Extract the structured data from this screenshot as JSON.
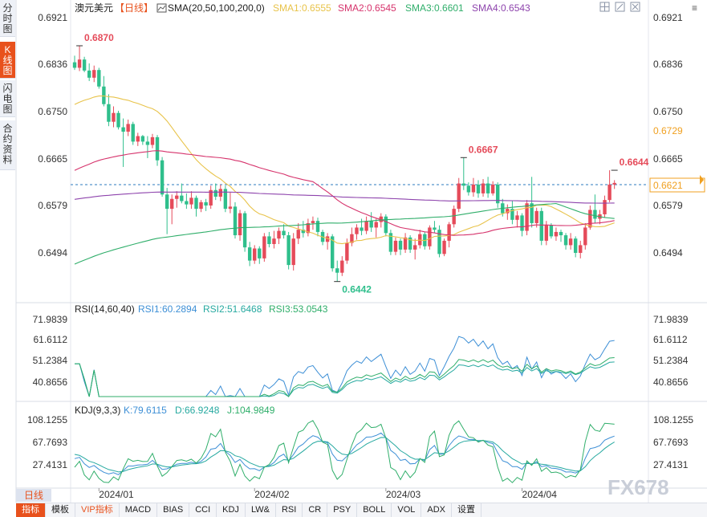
{
  "side_tabs": [
    {
      "label": "分时图",
      "active": false
    },
    {
      "label": "K线图",
      "active": true
    },
    {
      "label": "闪电图",
      "active": false
    },
    {
      "label": "合约资料",
      "active": false
    }
  ],
  "header": {
    "symbol": "澳元美元",
    "period": "【日线】",
    "indicator": "SMA(20,50,100,200,0)",
    "sma1": "SMA1:0.6555",
    "sma2": "SMA2:0.6545",
    "sma3": "SMA3:0.6601",
    "sma4": "SMA4:0.6543"
  },
  "rsi_header": {
    "name": "RSI(14,60,40)",
    "rsi1": "RSI1:60.2894",
    "rsi2": "RSI2:51.6468",
    "rsi3": "RSI3:53.0543"
  },
  "kdj_header": {
    "name": "KDJ(9,3,3)",
    "k": "K:79.6115",
    "d": "D:66.9248",
    "j": "J:104.9849"
  },
  "period_button": "日线",
  "bottom_tabs": [
    "指标",
    "模板",
    "VIP指标",
    "MACD",
    "BIAS",
    "CCI",
    "KDJ",
    "LW&",
    "RSI",
    "CR",
    "PSY",
    "BOLL",
    "VOL",
    "ADX",
    "设置"
  ],
  "watermark": "FX678",
  "colors": {
    "up": "#e54b5a",
    "down": "#2fbf8c",
    "sma1": "#e8c34a",
    "sma2": "#d6336c",
    "sma3": "#2fae6a",
    "sma4": "#8e44ad",
    "rsi1": "#3d8fd6",
    "rsi2": "#26a9a0",
    "rsi3": "#2fae6a",
    "accent": "#e8511c",
    "current": "#f0a020"
  },
  "chart_data": {
    "type": "candlestick",
    "price_axis_ticks": [
      "0.6921",
      "0.6836",
      "0.6750",
      "0.6665",
      "0.6579",
      "0.6494"
    ],
    "price_labels": {
      "current": "0.6621",
      "sma_marker": "0.6729"
    },
    "annotations": [
      {
        "text": "0.6870",
        "value": 0.687,
        "index": 1
      },
      {
        "text": "0.6442",
        "value": 0.6442,
        "index": 54
      },
      {
        "text": "0.6667",
        "value": 0.6667,
        "index": 80
      },
      {
        "text": "0.6644",
        "value": 0.6644,
        "index": 111
      }
    ],
    "x_labels": [
      {
        "text": "2024/01",
        "index": 5
      },
      {
        "text": "2024/02",
        "index": 37
      },
      {
        "text": "2024/03",
        "index": 64
      },
      {
        "text": "2024/04",
        "index": 92
      }
    ],
    "candles": [
      {
        "o": 0.684,
        "h": 0.6852,
        "l": 0.6826,
        "c": 0.683
      },
      {
        "o": 0.683,
        "h": 0.687,
        "l": 0.6824,
        "c": 0.6845
      },
      {
        "o": 0.6845,
        "h": 0.685,
        "l": 0.6822,
        "c": 0.6825
      },
      {
        "o": 0.6825,
        "h": 0.6838,
        "l": 0.6806,
        "c": 0.6812
      },
      {
        "o": 0.6812,
        "h": 0.6834,
        "l": 0.6804,
        "c": 0.6826
      },
      {
        "o": 0.6826,
        "h": 0.683,
        "l": 0.6792,
        "c": 0.6796
      },
      {
        "o": 0.6796,
        "h": 0.6815,
        "l": 0.676,
        "c": 0.6764
      },
      {
        "o": 0.6764,
        "h": 0.6782,
        "l": 0.6724,
        "c": 0.6732
      },
      {
        "o": 0.6732,
        "h": 0.676,
        "l": 0.6722,
        "c": 0.6748
      },
      {
        "o": 0.6748,
        "h": 0.6752,
        "l": 0.6718,
        "c": 0.6722
      },
      {
        "o": 0.6722,
        "h": 0.6738,
        "l": 0.665,
        "c": 0.6714
      },
      {
        "o": 0.6714,
        "h": 0.6736,
        "l": 0.6706,
        "c": 0.6728
      },
      {
        "o": 0.6728,
        "h": 0.6732,
        "l": 0.669,
        "c": 0.6696
      },
      {
        "o": 0.6696,
        "h": 0.6712,
        "l": 0.6688,
        "c": 0.6706
      },
      {
        "o": 0.6706,
        "h": 0.6708,
        "l": 0.669,
        "c": 0.6696
      },
      {
        "o": 0.6696,
        "h": 0.6706,
        "l": 0.6666,
        "c": 0.669
      },
      {
        "o": 0.669,
        "h": 0.671,
        "l": 0.6684,
        "c": 0.6704
      },
      {
        "o": 0.6704,
        "h": 0.6708,
        "l": 0.6652,
        "c": 0.6662
      },
      {
        "o": 0.6662,
        "h": 0.6668,
        "l": 0.6596,
        "c": 0.66
      },
      {
        "o": 0.66,
        "h": 0.6612,
        "l": 0.6528,
        "c": 0.6574
      },
      {
        "o": 0.6574,
        "h": 0.66,
        "l": 0.6546,
        "c": 0.6592
      },
      {
        "o": 0.6592,
        "h": 0.6606,
        "l": 0.6576,
        "c": 0.6598
      },
      {
        "o": 0.6598,
        "h": 0.662,
        "l": 0.6584,
        "c": 0.6588
      },
      {
        "o": 0.6588,
        "h": 0.6602,
        "l": 0.6574,
        "c": 0.6582
      },
      {
        "o": 0.6582,
        "h": 0.6606,
        "l": 0.6574,
        "c": 0.6594
      },
      {
        "o": 0.6594,
        "h": 0.6598,
        "l": 0.656,
        "c": 0.6574
      },
      {
        "o": 0.6574,
        "h": 0.659,
        "l": 0.6568,
        "c": 0.6586
      },
      {
        "o": 0.6586,
        "h": 0.6592,
        "l": 0.657,
        "c": 0.658
      },
      {
        "o": 0.658,
        "h": 0.6616,
        "l": 0.6574,
        "c": 0.6608
      },
      {
        "o": 0.6608,
        "h": 0.662,
        "l": 0.659,
        "c": 0.6596
      },
      {
        "o": 0.6596,
        "h": 0.6618,
        "l": 0.6588,
        "c": 0.661
      },
      {
        "o": 0.661,
        "h": 0.6616,
        "l": 0.6568,
        "c": 0.6574
      },
      {
        "o": 0.6574,
        "h": 0.6604,
        "l": 0.6566,
        "c": 0.6578
      },
      {
        "o": 0.6578,
        "h": 0.6586,
        "l": 0.652,
        "c": 0.6526
      },
      {
        "o": 0.6526,
        "h": 0.6572,
        "l": 0.6516,
        "c": 0.6566
      },
      {
        "o": 0.6566,
        "h": 0.657,
        "l": 0.6496,
        "c": 0.6504
      },
      {
        "o": 0.6504,
        "h": 0.6514,
        "l": 0.647,
        "c": 0.648
      },
      {
        "o": 0.648,
        "h": 0.6508,
        "l": 0.6474,
        "c": 0.6502
      },
      {
        "o": 0.6502,
        "h": 0.6506,
        "l": 0.6474,
        "c": 0.6484
      },
      {
        "o": 0.6484,
        "h": 0.653,
        "l": 0.6478,
        "c": 0.6524
      },
      {
        "o": 0.6524,
        "h": 0.6532,
        "l": 0.6504,
        "c": 0.651
      },
      {
        "o": 0.651,
        "h": 0.6534,
        "l": 0.6502,
        "c": 0.652
      },
      {
        "o": 0.652,
        "h": 0.654,
        "l": 0.651,
        "c": 0.6534
      },
      {
        "o": 0.6534,
        "h": 0.6546,
        "l": 0.652,
        "c": 0.6526
      },
      {
        "o": 0.6526,
        "h": 0.6532,
        "l": 0.6464,
        "c": 0.6472
      },
      {
        "o": 0.6472,
        "h": 0.653,
        "l": 0.6462,
        "c": 0.652
      },
      {
        "o": 0.652,
        "h": 0.6548,
        "l": 0.651,
        "c": 0.6536
      },
      {
        "o": 0.6536,
        "h": 0.6552,
        "l": 0.6522,
        "c": 0.653
      },
      {
        "o": 0.653,
        "h": 0.6556,
        "l": 0.6524,
        "c": 0.6548
      },
      {
        "o": 0.6548,
        "h": 0.656,
        "l": 0.6536,
        "c": 0.6552
      },
      {
        "o": 0.6552,
        "h": 0.6558,
        "l": 0.6524,
        "c": 0.6532
      },
      {
        "o": 0.6532,
        "h": 0.6536,
        "l": 0.6508,
        "c": 0.6514
      },
      {
        "o": 0.6514,
        "h": 0.653,
        "l": 0.65,
        "c": 0.6524
      },
      {
        "o": 0.6524,
        "h": 0.6528,
        "l": 0.646,
        "c": 0.6466
      },
      {
        "o": 0.6466,
        "h": 0.648,
        "l": 0.6442,
        "c": 0.6458
      },
      {
        "o": 0.6458,
        "h": 0.6488,
        "l": 0.6452,
        "c": 0.648
      },
      {
        "o": 0.648,
        "h": 0.652,
        "l": 0.6474,
        "c": 0.6512
      },
      {
        "o": 0.6512,
        "h": 0.654,
        "l": 0.6506,
        "c": 0.6528
      },
      {
        "o": 0.6528,
        "h": 0.6546,
        "l": 0.6518,
        "c": 0.654
      },
      {
        "o": 0.654,
        "h": 0.6556,
        "l": 0.6526,
        "c": 0.6534
      },
      {
        "o": 0.6534,
        "h": 0.656,
        "l": 0.6528,
        "c": 0.6552
      },
      {
        "o": 0.6552,
        "h": 0.6568,
        "l": 0.6532,
        "c": 0.654
      },
      {
        "o": 0.654,
        "h": 0.6556,
        "l": 0.6522,
        "c": 0.655
      },
      {
        "o": 0.655,
        "h": 0.6566,
        "l": 0.654,
        "c": 0.656
      },
      {
        "o": 0.656,
        "h": 0.6564,
        "l": 0.6524,
        "c": 0.653
      },
      {
        "o": 0.653,
        "h": 0.6536,
        "l": 0.649,
        "c": 0.6496
      },
      {
        "o": 0.6496,
        "h": 0.6522,
        "l": 0.649,
        "c": 0.6516
      },
      {
        "o": 0.6516,
        "h": 0.652,
        "l": 0.649,
        "c": 0.65
      },
      {
        "o": 0.65,
        "h": 0.653,
        "l": 0.6494,
        "c": 0.6522
      },
      {
        "o": 0.6522,
        "h": 0.6526,
        "l": 0.6494,
        "c": 0.65
      },
      {
        "o": 0.65,
        "h": 0.652,
        "l": 0.6482,
        "c": 0.6508
      },
      {
        "o": 0.6508,
        "h": 0.6536,
        "l": 0.6502,
        "c": 0.6528
      },
      {
        "o": 0.6528,
        "h": 0.6532,
        "l": 0.65,
        "c": 0.6506
      },
      {
        "o": 0.6506,
        "h": 0.6544,
        "l": 0.65,
        "c": 0.654
      },
      {
        "o": 0.654,
        "h": 0.6552,
        "l": 0.653,
        "c": 0.6536
      },
      {
        "o": 0.6536,
        "h": 0.6544,
        "l": 0.6486,
        "c": 0.6492
      },
      {
        "o": 0.6492,
        "h": 0.652,
        "l": 0.6488,
        "c": 0.6516
      },
      {
        "o": 0.6516,
        "h": 0.655,
        "l": 0.6504,
        "c": 0.6546
      },
      {
        "o": 0.6546,
        "h": 0.658,
        "l": 0.654,
        "c": 0.6574
      },
      {
        "o": 0.6574,
        "h": 0.663,
        "l": 0.6568,
        "c": 0.662
      },
      {
        "o": 0.662,
        "h": 0.6667,
        "l": 0.6608,
        "c": 0.6616
      },
      {
        "o": 0.6616,
        "h": 0.6622,
        "l": 0.6598,
        "c": 0.6604
      },
      {
        "o": 0.6604,
        "h": 0.663,
        "l": 0.6596,
        "c": 0.6618
      },
      {
        "o": 0.6618,
        "h": 0.6626,
        "l": 0.6594,
        "c": 0.6602
      },
      {
        "o": 0.6602,
        "h": 0.6628,
        "l": 0.6596,
        "c": 0.662
      },
      {
        "o": 0.662,
        "h": 0.6632,
        "l": 0.6594,
        "c": 0.6602
      },
      {
        "o": 0.6602,
        "h": 0.6624,
        "l": 0.6598,
        "c": 0.6618
      },
      {
        "o": 0.6618,
        "h": 0.6622,
        "l": 0.6576,
        "c": 0.6584
      },
      {
        "o": 0.6584,
        "h": 0.6592,
        "l": 0.656,
        "c": 0.6566
      },
      {
        "o": 0.6566,
        "h": 0.6582,
        "l": 0.6554,
        "c": 0.6574
      },
      {
        "o": 0.6574,
        "h": 0.6588,
        "l": 0.6546,
        "c": 0.6554
      },
      {
        "o": 0.6554,
        "h": 0.657,
        "l": 0.654,
        "c": 0.6562
      },
      {
        "o": 0.6562,
        "h": 0.6566,
        "l": 0.6524,
        "c": 0.6534
      },
      {
        "o": 0.6534,
        "h": 0.659,
        "l": 0.6526,
        "c": 0.6584
      },
      {
        "o": 0.6584,
        "h": 0.6632,
        "l": 0.654,
        "c": 0.6548
      },
      {
        "o": 0.6548,
        "h": 0.6576,
        "l": 0.654,
        "c": 0.657
      },
      {
        "o": 0.657,
        "h": 0.6576,
        "l": 0.6508,
        "c": 0.6516
      },
      {
        "o": 0.6516,
        "h": 0.6552,
        "l": 0.6508,
        "c": 0.6544
      },
      {
        "o": 0.6544,
        "h": 0.6548,
        "l": 0.652,
        "c": 0.6524
      },
      {
        "o": 0.6524,
        "h": 0.654,
        "l": 0.6516,
        "c": 0.6532
      },
      {
        "o": 0.6532,
        "h": 0.6536,
        "l": 0.6514,
        "c": 0.6526
      },
      {
        "o": 0.6526,
        "h": 0.653,
        "l": 0.65,
        "c": 0.6508
      },
      {
        "o": 0.6508,
        "h": 0.653,
        "l": 0.65,
        "c": 0.652
      },
      {
        "o": 0.652,
        "h": 0.6524,
        "l": 0.6486,
        "c": 0.6494
      },
      {
        "o": 0.6494,
        "h": 0.6516,
        "l": 0.6484,
        "c": 0.6508
      },
      {
        "o": 0.6508,
        "h": 0.6548,
        "l": 0.65,
        "c": 0.654
      },
      {
        "o": 0.654,
        "h": 0.658,
        "l": 0.6536,
        "c": 0.6572
      },
      {
        "o": 0.6572,
        "h": 0.66,
        "l": 0.6548,
        "c": 0.6556
      },
      {
        "o": 0.6556,
        "h": 0.6572,
        "l": 0.6546,
        "c": 0.6564
      },
      {
        "o": 0.6564,
        "h": 0.6598,
        "l": 0.6558,
        "c": 0.659
      },
      {
        "o": 0.659,
        "h": 0.6644,
        "l": 0.6586,
        "c": 0.6618
      },
      {
        "o": 0.6618,
        "h": 0.6626,
        "l": 0.661,
        "c": 0.6621
      }
    ],
    "rsi_axis_ticks": [
      "71.9839",
      "61.6112",
      "51.2384",
      "40.8656"
    ],
    "kdj_axis_ticks": [
      "108.1255",
      "67.7693",
      "27.4131"
    ]
  }
}
